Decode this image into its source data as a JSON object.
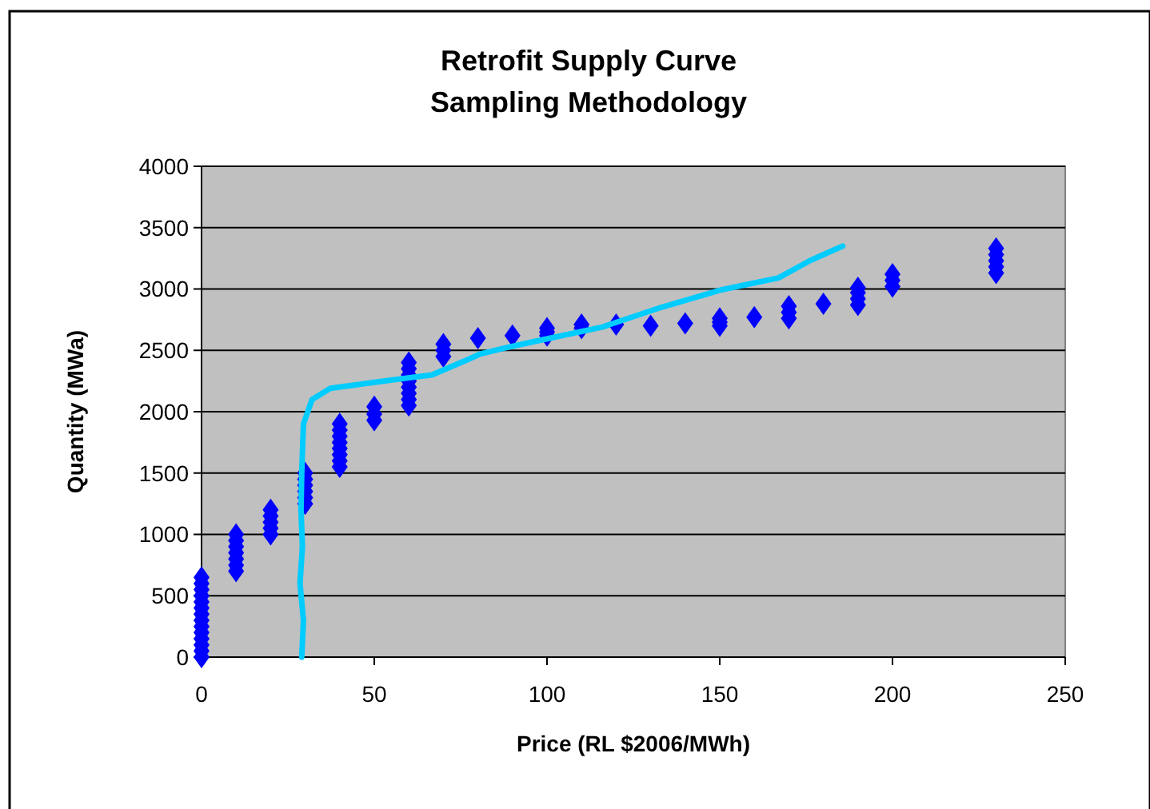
{
  "chart_data": {
    "type": "scatter",
    "title": "Retrofit Supply Curve\nSampling Methodology",
    "xlabel": "Price (RL $2006/MWh)",
    "ylabel": "Quantity (MWa)",
    "xlim": [
      0,
      250
    ],
    "xticks": [
      0,
      50,
      100,
      150,
      200,
      250
    ],
    "ylim": [
      0,
      4000
    ],
    "yticks": [
      0,
      500,
      1000,
      1500,
      2000,
      2500,
      3000,
      3500,
      4000
    ],
    "grid": "y",
    "marker": "diamond",
    "series": [
      {
        "color": "#0000ff",
        "x": [
          0,
          0,
          0,
          0,
          0,
          0,
          0,
          0,
          0,
          0,
          0,
          0,
          0,
          0,
          10,
          10,
          10,
          10,
          10,
          10,
          10,
          20,
          20,
          20,
          20,
          20,
          30,
          30,
          30,
          30,
          30,
          30,
          40,
          40,
          40,
          40,
          40,
          40,
          40,
          40,
          50,
          50,
          50,
          60,
          60,
          60,
          60,
          60,
          60,
          60,
          60,
          70,
          70,
          70,
          80,
          90,
          100,
          100,
          100,
          110,
          110,
          120,
          130,
          140,
          150,
          150,
          150,
          160,
          170,
          170,
          170,
          180,
          190,
          190,
          190,
          190,
          200,
          200,
          200,
          230,
          230,
          230,
          230,
          230
        ],
        "values": [
          0,
          50,
          100,
          150,
          200,
          250,
          300,
          350,
          400,
          450,
          500,
          550,
          600,
          650,
          700,
          750,
          800,
          850,
          900,
          950,
          1000,
          1000,
          1050,
          1100,
          1150,
          1200,
          1250,
          1300,
          1350,
          1400,
          1450,
          1500,
          1550,
          1600,
          1650,
          1700,
          1750,
          1800,
          1850,
          1900,
          1930,
          1980,
          2040,
          2050,
          2100,
          2150,
          2200,
          2250,
          2300,
          2350,
          2400,
          2450,
          2500,
          2550,
          2600,
          2620,
          2620,
          2650,
          2680,
          2680,
          2710,
          2710,
          2700,
          2720,
          2700,
          2730,
          2760,
          2770,
          2760,
          2810,
          2860,
          2880,
          2870,
          2920,
          2970,
          3010,
          3020,
          3070,
          3120,
          3130,
          3180,
          3230,
          3280,
          3330
        ]
      },
      {
        "type": "line",
        "color": "#00ccff",
        "line_style": "solid",
        "marker": "none",
        "x": [
          29,
          29.5,
          28.5,
          29.2,
          28.8,
          29,
          29.5,
          32,
          37.3,
          50,
          66.7,
          77.5,
          80.6,
          88,
          96,
          116,
          133,
          150,
          167,
          176,
          185.6
        ],
        "values": [
          0,
          300,
          600,
          900,
          1200,
          1500,
          1900,
          2100,
          2190,
          2240,
          2300,
          2430,
          2470,
          2520,
          2570,
          2690,
          2850,
          2990,
          3090,
          3230,
          3350
        ]
      }
    ]
  }
}
